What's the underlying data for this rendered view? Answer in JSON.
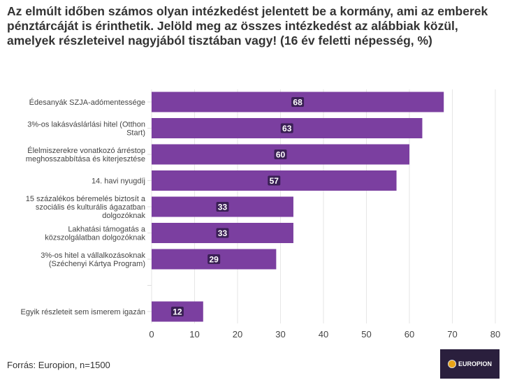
{
  "chart_data": {
    "type": "bar",
    "orientation": "horizontal",
    "title": "Az elmúlt időben számos olyan intézkedést jelentett be a kormány, ami az emberek pénztárcáját is érinthetik. Jelöld meg az összes intézkedést az alábbiak közül, amelyek részleteivel nagyjából tisztában vagy! (16 év feletti népesség, %)",
    "categories": [
      "Édesanyák SZJA-adómentessége",
      "3%-os lakásváslárlási hitel (Otthon Start)",
      "Élelmiszerekre vonatkozó árréstop meghosszabbítása és kiterjesztése",
      "14. havi nyugdíj",
      "15 százalékos béremelés biztosít a szociális és kulturális ágazatban dolgozóknak",
      "Lakhatási támogatás a közszolgálatban dolgozóknak",
      "3%-os hitel a vállalkozásoknak (Széchenyi Kártya Program)",
      "",
      "Egyik részleteit sem ismerem igazán"
    ],
    "values": [
      68,
      63,
      60,
      57,
      33,
      33,
      29,
      null,
      12
    ],
    "xlim": [
      0,
      80
    ],
    "xticks": [
      0,
      10,
      20,
      30,
      40,
      50,
      60,
      70,
      80
    ],
    "grid": true,
    "bar_color": "#7b3fa0"
  },
  "footer": {
    "source": "Forrás: Europion, n=1500",
    "logo": "EUROPION"
  }
}
